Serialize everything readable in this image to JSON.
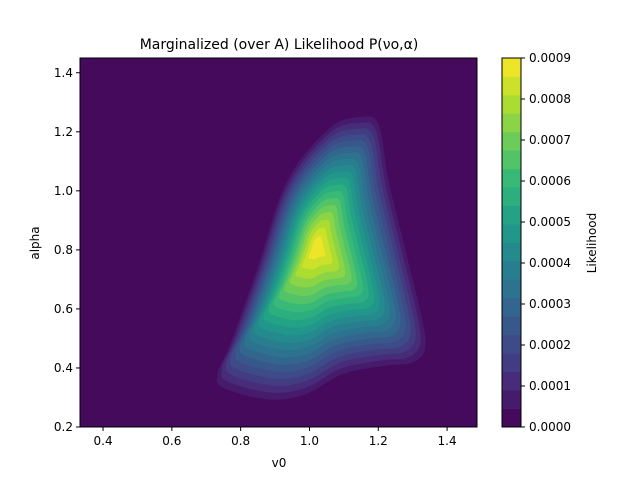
{
  "chart_data": {
    "type": "contourf",
    "title": "Marginalized (over A) Likelihood P(νo,α)",
    "xlabel": "v0",
    "ylabel": "alpha",
    "xlim": [
      0.333,
      1.487
    ],
    "ylim": [
      0.2,
      1.45
    ],
    "x_ticks": [
      "0.4",
      "0.6",
      "0.8",
      "1.0",
      "1.2",
      "1.4"
    ],
    "y_ticks": [
      "0.2",
      "0.4",
      "0.6",
      "0.8",
      "1.0",
      "1.2",
      "1.4"
    ],
    "grid": false,
    "colormap": "viridis",
    "colorbar": {
      "label": "Likelihood",
      "range": [
        0.0,
        0.0009
      ],
      "levels": 20,
      "ticks": [
        "0.0000",
        "0.0001",
        "0.0002",
        "0.0003",
        "0.0004",
        "0.0005",
        "0.0006",
        "0.0007",
        "0.0008",
        "0.0009"
      ]
    },
    "peak": {
      "v0": 1.02,
      "alpha": 0.81,
      "likelihood": 0.0009
    },
    "support_boundary": {
      "v0": [
        0.72,
        0.76,
        0.84,
        0.93,
        1.06,
        1.16,
        1.21,
        1.24,
        1.29,
        1.34,
        1.35,
        1.31,
        1.23,
        1.1,
        0.99,
        0.88,
        0.74
      ],
      "alpha": [
        0.36,
        0.47,
        0.73,
        1.04,
        1.23,
        1.27,
        1.24,
        1.04,
        0.8,
        0.56,
        0.45,
        0.4,
        0.39,
        0.36,
        0.29,
        0.27,
        0.31
      ]
    }
  }
}
